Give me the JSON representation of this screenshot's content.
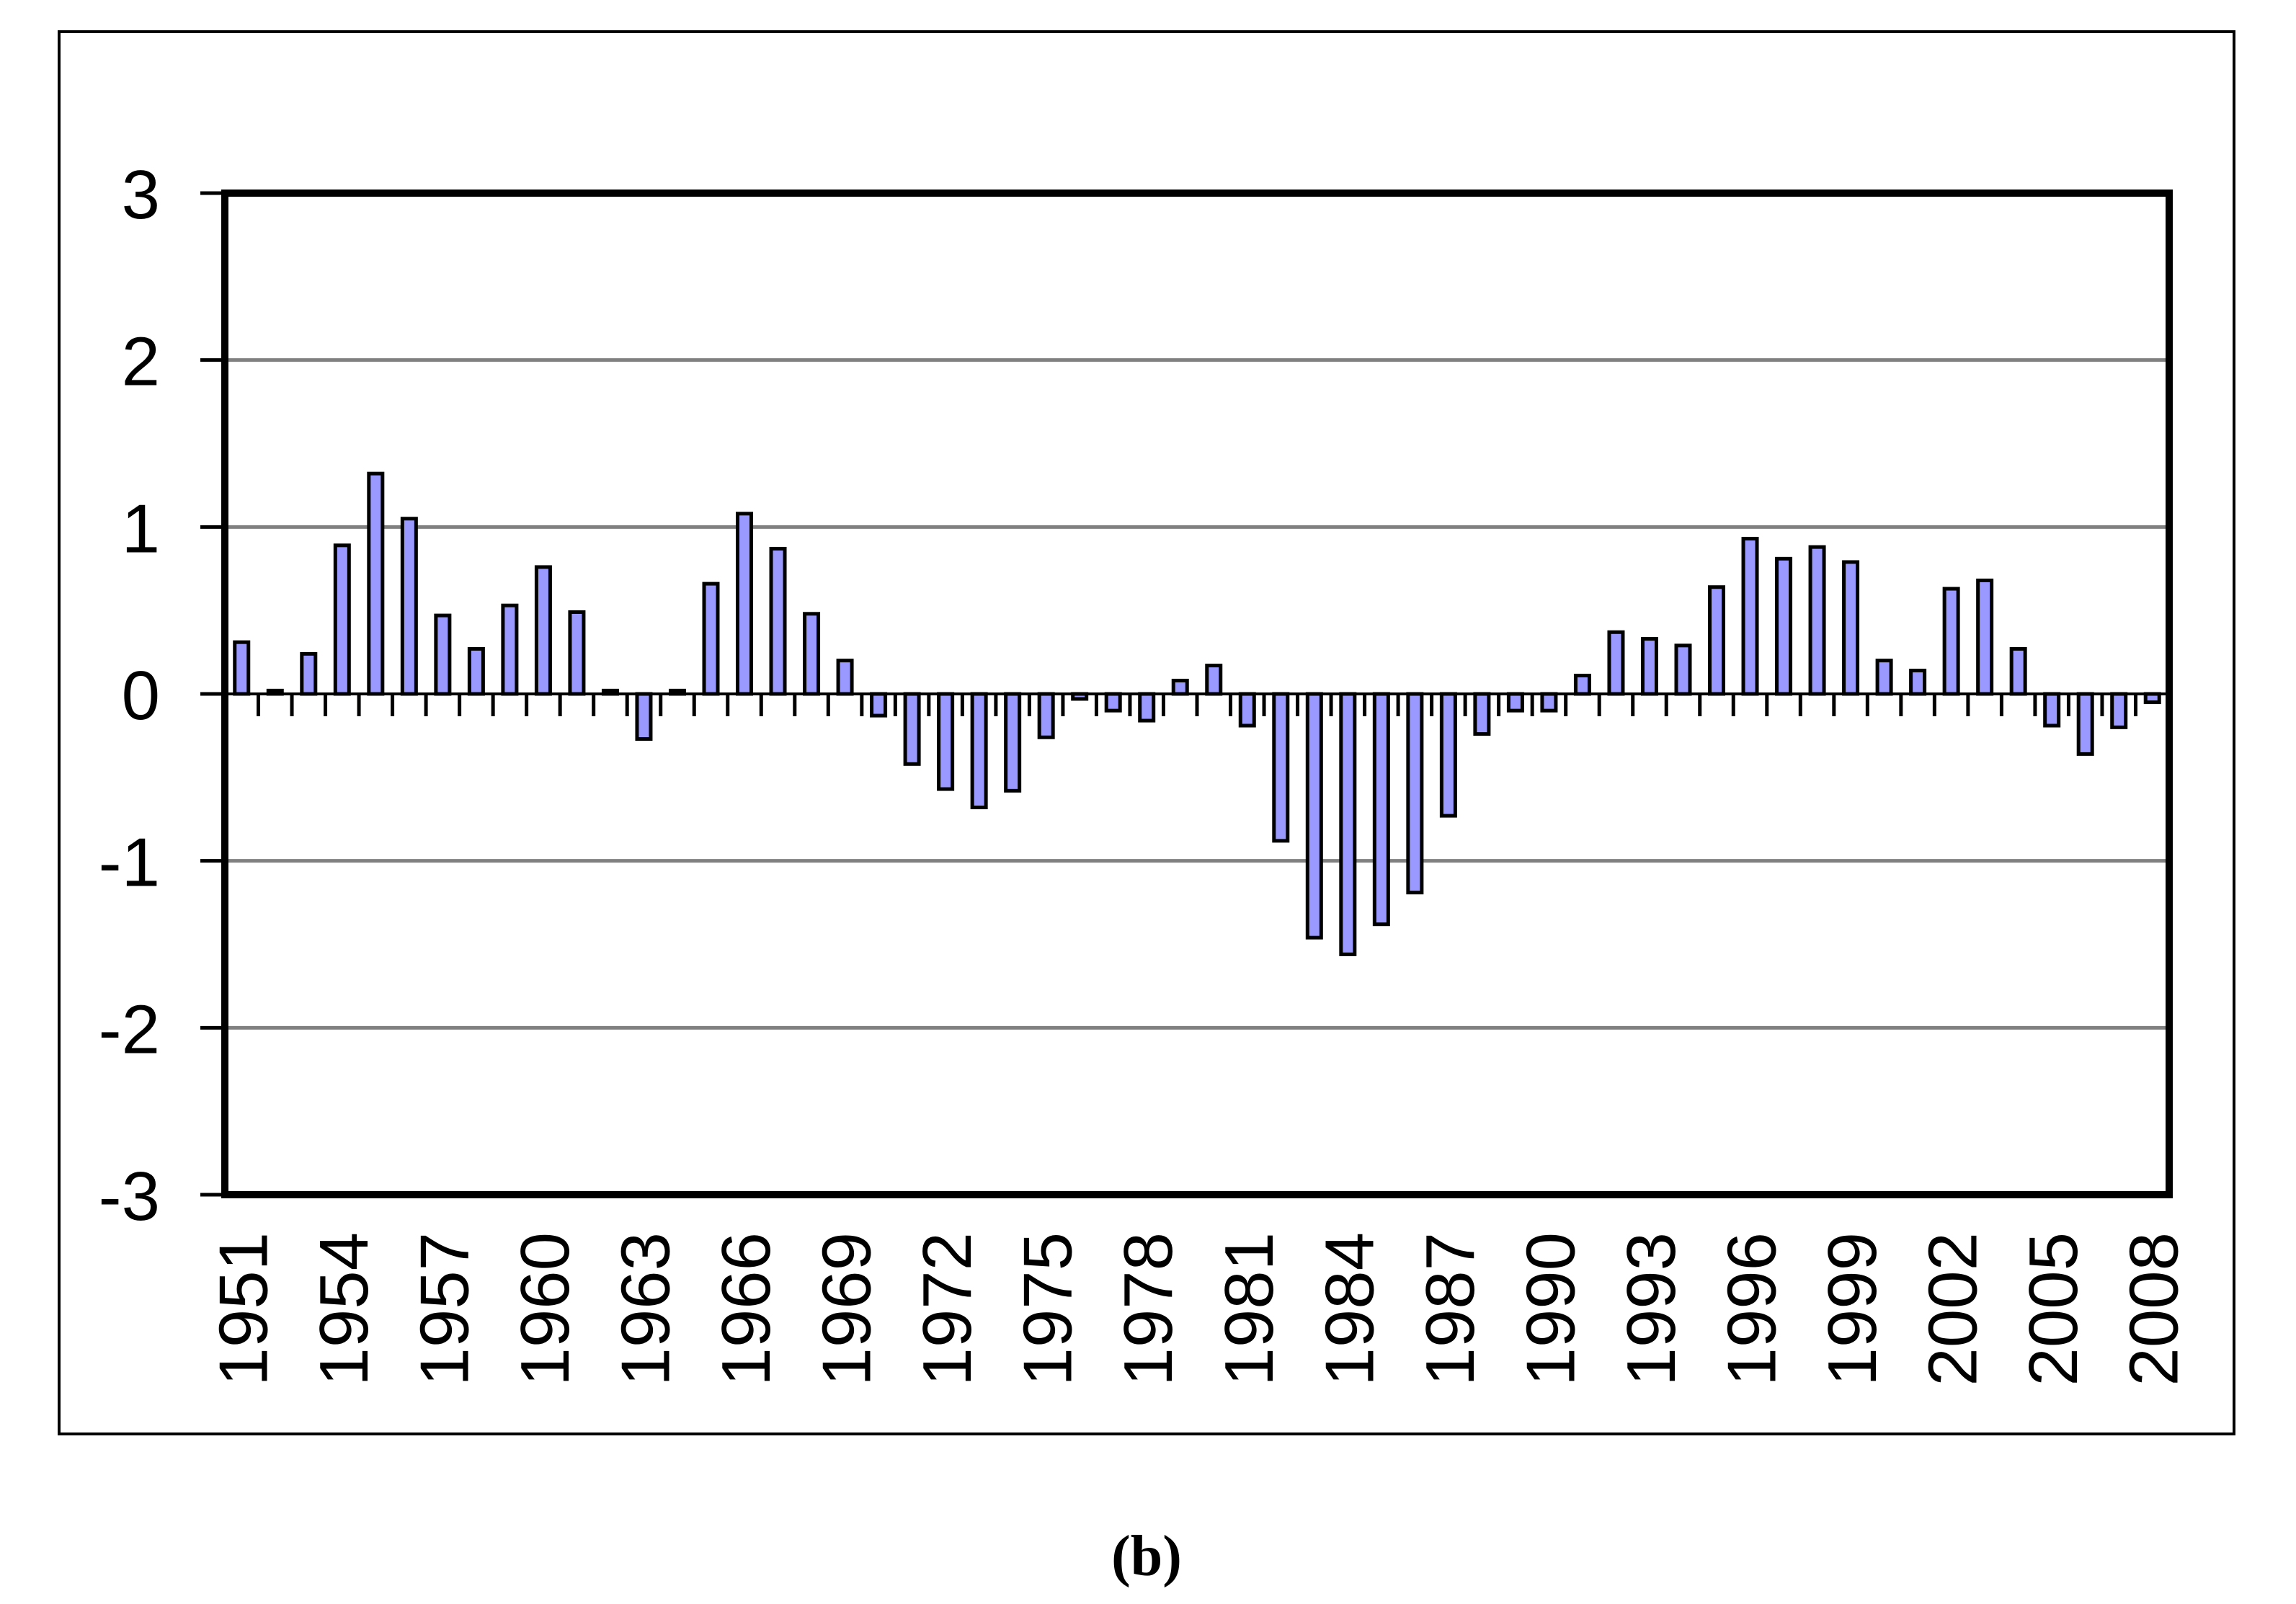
{
  "caption": "(b)",
  "chart_data": {
    "type": "bar",
    "title": "",
    "xlabel": "",
    "ylabel": "",
    "x": [
      1951,
      1952,
      1953,
      1954,
      1955,
      1956,
      1957,
      1958,
      1959,
      1960,
      1961,
      1962,
      1963,
      1964,
      1965,
      1966,
      1967,
      1968,
      1969,
      1970,
      1971,
      1972,
      1973,
      1974,
      1975,
      1976,
      1977,
      1978,
      1979,
      1980,
      1981,
      1982,
      1983,
      1984,
      1985,
      1986,
      1987,
      1988,
      1989,
      1990,
      1991,
      1992,
      1993,
      1994,
      1995,
      1996,
      1997,
      1998,
      1999,
      2000,
      2001,
      2002,
      2003,
      2004,
      2005,
      2006,
      2007,
      2008
    ],
    "values": [
      0.31,
      0.02,
      0.24,
      0.89,
      1.32,
      1.05,
      0.47,
      0.27,
      0.53,
      0.76,
      0.49,
      0.02,
      -0.27,
      0.02,
      0.66,
      1.08,
      0.87,
      0.48,
      0.2,
      -0.13,
      -0.42,
      -0.57,
      -0.68,
      -0.58,
      -0.26,
      -0.03,
      -0.1,
      -0.16,
      0.08,
      0.17,
      -0.19,
      -0.88,
      -1.46,
      -1.56,
      -1.38,
      -1.19,
      -0.73,
      -0.24,
      -0.1,
      -0.1,
      0.11,
      0.37,
      0.33,
      0.29,
      0.64,
      0.93,
      0.81,
      0.88,
      0.79,
      0.2,
      0.14,
      0.63,
      0.68,
      0.27,
      -0.19,
      -0.36,
      -0.2,
      -0.05
    ],
    "ylim": [
      -3,
      3
    ],
    "yticks": [
      3,
      2,
      1,
      0,
      -1,
      -2,
      -3
    ],
    "ytick_labels": [
      "3",
      "2",
      "1",
      "0",
      "-1",
      "-2",
      "-3"
    ],
    "gridline_values": [
      2,
      1,
      -1,
      -2
    ],
    "xtick_labels": [
      "1951",
      "1954",
      "1957",
      "1960",
      "1963",
      "1966",
      "1969",
      "1972",
      "1975",
      "1978",
      "1981",
      "1984",
      "1987",
      "1990",
      "1993",
      "1996",
      "1999",
      "2002",
      "2005",
      "2008"
    ],
    "xtick_label_step": 3,
    "legend": "none",
    "grid": "horizontal",
    "bar_fill": "#9999FF",
    "bar_border": "#000000",
    "gridline_color": "#808080",
    "axis_color": "#000000",
    "plot_border_color": "#000000",
    "frame_color": "#000000"
  }
}
